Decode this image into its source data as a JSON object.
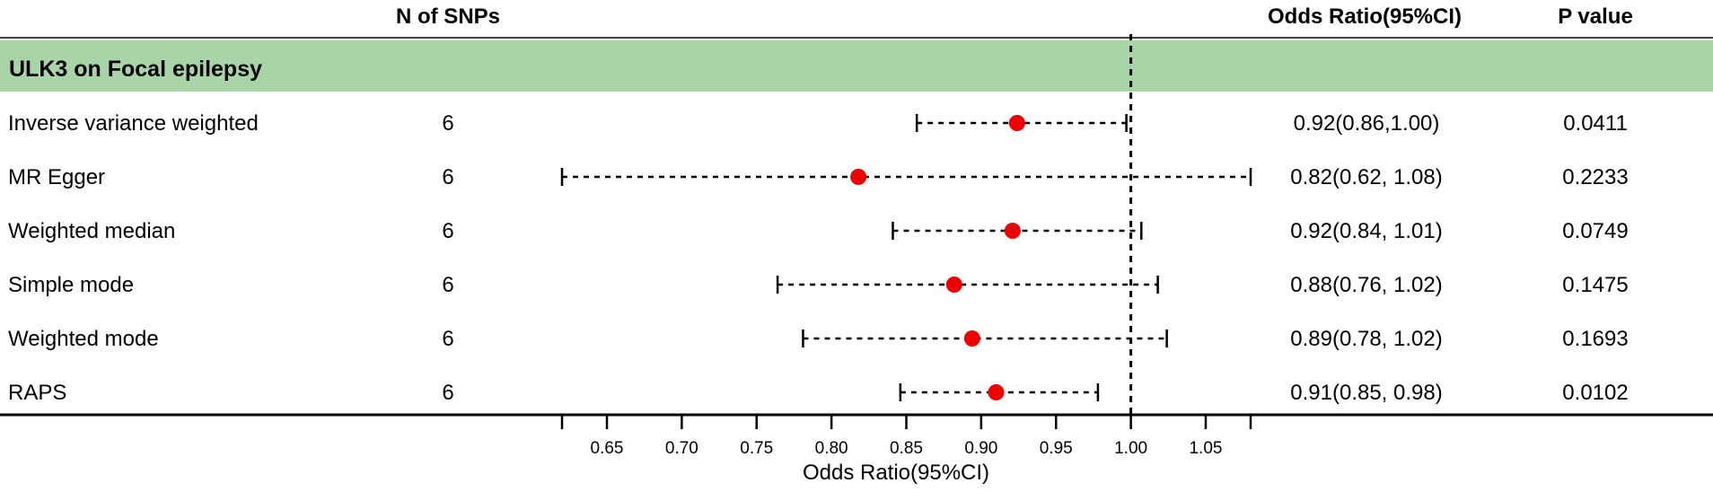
{
  "headers": {
    "nsnps": "N of SNPs",
    "or": "Odds Ratio(95%CI)",
    "p": "P value"
  },
  "group_label": "ULK3 on Focal epilepsy",
  "colors": {
    "group_band": "#a8d5a8",
    "point": "#ee0000",
    "line": "#000000"
  },
  "rows": [
    {
      "method": "Inverse variance weighted",
      "n": "6",
      "or_text": "0.92(0.86,1.00)",
      "p": "0.0411"
    },
    {
      "method": "MR Egger",
      "n": "6",
      "or_text": "0.82(0.62, 1.08)",
      "p": "0.2233"
    },
    {
      "method": "Weighted median",
      "n": "6",
      "or_text": "0.92(0.84, 1.01)",
      "p": "0.0749"
    },
    {
      "method": "Simple mode",
      "n": "6",
      "or_text": "0.88(0.76, 1.02)",
      "p": "0.1475"
    },
    {
      "method": "Weighted mode",
      "n": "6",
      "or_text": "0.89(0.78, 1.02)",
      "p": "0.1693"
    },
    {
      "method": "RAPS",
      "n": "6",
      "or_text": "0.91(0.85, 0.98)",
      "p": "0.0102"
    }
  ],
  "chart_data": {
    "type": "scatter",
    "subtype": "forest",
    "xlabel": "Odds Ratio(95%CI)",
    "xlim": [
      0.62,
      1.08
    ],
    "xticks": [
      "0.65",
      "0.70",
      "0.75",
      "0.80",
      "0.85",
      "0.90",
      "0.95",
      "1.00",
      "1.05"
    ],
    "reference_line": 1.0,
    "categories": [
      "Inverse variance weighted",
      "MR Egger",
      "Weighted median",
      "Simple mode",
      "Weighted mode",
      "RAPS"
    ],
    "estimates": [
      0.924,
      0.818,
      0.921,
      0.882,
      0.894,
      0.91
    ],
    "lower": [
      0.857,
      0.62,
      0.841,
      0.764,
      0.781,
      0.846
    ],
    "upper": [
      0.997,
      1.08,
      1.007,
      1.018,
      1.024,
      0.978
    ],
    "grid": false
  }
}
